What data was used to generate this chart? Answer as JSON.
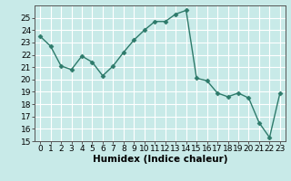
{
  "x": [
    0,
    1,
    2,
    3,
    4,
    5,
    6,
    7,
    8,
    9,
    10,
    11,
    12,
    13,
    14,
    15,
    16,
    17,
    18,
    19,
    20,
    21,
    22,
    23
  ],
  "y": [
    23.5,
    22.7,
    21.1,
    20.8,
    21.9,
    21.4,
    20.3,
    21.1,
    22.2,
    23.2,
    24.0,
    24.7,
    24.7,
    25.3,
    25.6,
    20.1,
    19.9,
    18.9,
    18.6,
    18.9,
    18.5,
    16.5,
    15.3,
    18.9
  ],
  "line_color": "#2d7a6a",
  "marker": "D",
  "marker_size": 2.5,
  "bg_color": "#c8eae8",
  "grid_color": "#ffffff",
  "xlabel": "Humidex (Indice chaleur)",
  "ylim": [
    15,
    26
  ],
  "xlim": [
    -0.5,
    23.5
  ],
  "yticks": [
    15,
    16,
    17,
    18,
    19,
    20,
    21,
    22,
    23,
    24,
    25
  ],
  "xticks": [
    0,
    1,
    2,
    3,
    4,
    5,
    6,
    7,
    8,
    9,
    10,
    11,
    12,
    13,
    14,
    15,
    16,
    17,
    18,
    19,
    20,
    21,
    22,
    23
  ],
  "xtick_labels": [
    "0",
    "1",
    "2",
    "3",
    "4",
    "5",
    "6",
    "7",
    "8",
    "9",
    "10",
    "11",
    "12",
    "13",
    "14",
    "15",
    "16",
    "17",
    "18",
    "19",
    "20",
    "21",
    "22",
    "23"
  ],
  "xlabel_fontsize": 7.5,
  "tick_fontsize": 6.5,
  "line_width": 1.0
}
